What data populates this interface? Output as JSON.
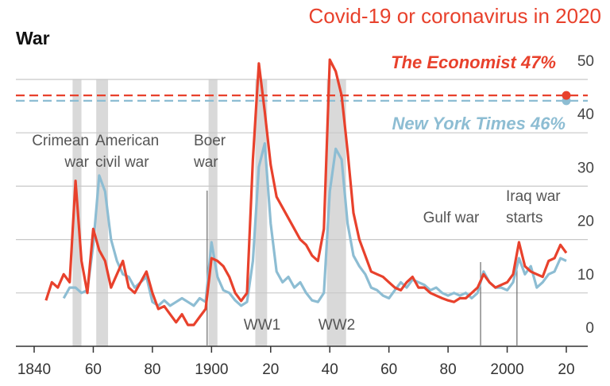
{
  "chart_data": {
    "type": "line",
    "title": "War",
    "subtitle": "Covid-19 or coronavirus in 2020",
    "x": [
      1844,
      1846,
      1848,
      1850,
      1852,
      1854,
      1856,
      1858,
      1860,
      1862,
      1864,
      1866,
      1868,
      1870,
      1872,
      1874,
      1876,
      1878,
      1880,
      1882,
      1884,
      1886,
      1888,
      1890,
      1892,
      1894,
      1896,
      1898,
      1900,
      1902,
      1904,
      1906,
      1908,
      1910,
      1912,
      1914,
      1916,
      1918,
      1920,
      1922,
      1924,
      1926,
      1928,
      1930,
      1932,
      1934,
      1936,
      1938,
      1940,
      1942,
      1944,
      1946,
      1948,
      1950,
      1952,
      1954,
      1956,
      1958,
      1960,
      1962,
      1964,
      1966,
      1968,
      1970,
      1972,
      1974,
      1976,
      1978,
      1980,
      1982,
      1984,
      1986,
      1988,
      1990,
      1992,
      1994,
      1996,
      1998,
      2000,
      2002,
      2004,
      2006,
      2008,
      2010,
      2012,
      2014,
      2016,
      2018,
      2020
    ],
    "series": [
      {
        "name": "The Economist",
        "color": "#e8412c",
        "values": [
          8.6,
          12,
          11,
          13.5,
          12,
          31,
          16,
          10,
          22,
          18,
          16,
          11,
          13.5,
          16,
          11,
          10,
          12,
          14,
          10,
          7,
          7.5,
          6,
          4.5,
          6,
          4,
          4,
          5.5,
          7,
          16.5,
          16,
          15,
          13,
          10,
          8.5,
          10,
          35,
          53,
          44,
          34,
          28,
          26,
          24,
          22,
          20,
          19,
          17,
          16,
          22,
          53.7,
          51.5,
          47,
          36.6,
          25,
          20,
          17,
          14,
          13.5,
          13,
          12,
          11,
          10.5,
          12,
          13,
          11,
          11,
          10,
          9.5,
          9,
          8.6,
          8.3,
          9,
          9,
          10,
          11,
          13.5,
          12,
          11,
          11.5,
          12,
          13.5,
          19.5,
          15,
          14,
          13.5,
          13,
          16,
          16.5,
          19,
          17.5
        ]
      },
      {
        "name": "New York Times",
        "color": "#8dbdd3",
        "values": [
          null,
          null,
          null,
          9,
          11,
          11,
          10,
          10.5,
          19,
          32,
          29,
          20,
          16,
          13.5,
          13,
          11,
          12,
          13,
          8.3,
          7.6,
          8.6,
          7.6,
          8.3,
          9,
          8.3,
          7.6,
          9,
          8.3,
          19.5,
          13,
          10.5,
          10,
          8.6,
          7.6,
          8.3,
          16,
          33.6,
          38,
          23,
          14,
          12,
          13,
          11,
          12,
          10,
          8.6,
          8.3,
          10,
          29,
          37,
          35,
          23,
          17,
          15,
          13.5,
          11,
          10.5,
          9.5,
          9,
          10.5,
          12,
          11,
          12.5,
          12,
          11.5,
          10.5,
          11,
          10,
          9.5,
          10,
          9.5,
          10,
          9,
          10,
          14,
          12,
          11,
          11,
          10.5,
          12,
          16.5,
          13.5,
          15,
          11,
          12,
          13.5,
          14,
          16.5,
          16
        ]
      }
    ],
    "reference": {
      "values": [
        47,
        46
      ],
      "value_labels": [
        "47%",
        "46%"
      ],
      "x": 2020
    },
    "xlim": [
      1835,
      2027
    ],
    "ylim": [
      0,
      50
    ],
    "xticks": [
      {
        "value": 1840,
        "label": "1840"
      },
      {
        "value": 1860,
        "label": "60"
      },
      {
        "value": 1880,
        "label": "80"
      },
      {
        "value": 1900,
        "label": "1900"
      },
      {
        "value": 1920,
        "label": "20"
      },
      {
        "value": 1940,
        "label": "40"
      },
      {
        "value": 1960,
        "label": "60"
      },
      {
        "value": 1980,
        "label": "80"
      },
      {
        "value": 2000,
        "label": "2000"
      },
      {
        "value": 2020,
        "label": "20"
      }
    ],
    "yticks": [
      0,
      10,
      20,
      30,
      40,
      50
    ],
    "grid": true,
    "spans": [
      {
        "label": [
          "Crimean",
          "war"
        ],
        "start": 1853,
        "end": 1856
      },
      {
        "label": [
          "American",
          "civil war"
        ],
        "start": 1861,
        "end": 1865
      },
      {
        "label": [
          "Boer",
          "war"
        ],
        "start": 1899,
        "end": 1902
      },
      {
        "label": [
          "WW1"
        ],
        "start": 1914.8,
        "end": 1918.8
      },
      {
        "label": [
          "WW2"
        ],
        "start": 1939,
        "end": 1945.5
      }
    ],
    "events": [
      {
        "x": 1898.5
      },
      {
        "label": [
          "Gulf war"
        ],
        "x": 1991
      },
      {
        "label": [
          "Iraq war",
          "starts"
        ],
        "x": 2003.3
      }
    ]
  }
}
